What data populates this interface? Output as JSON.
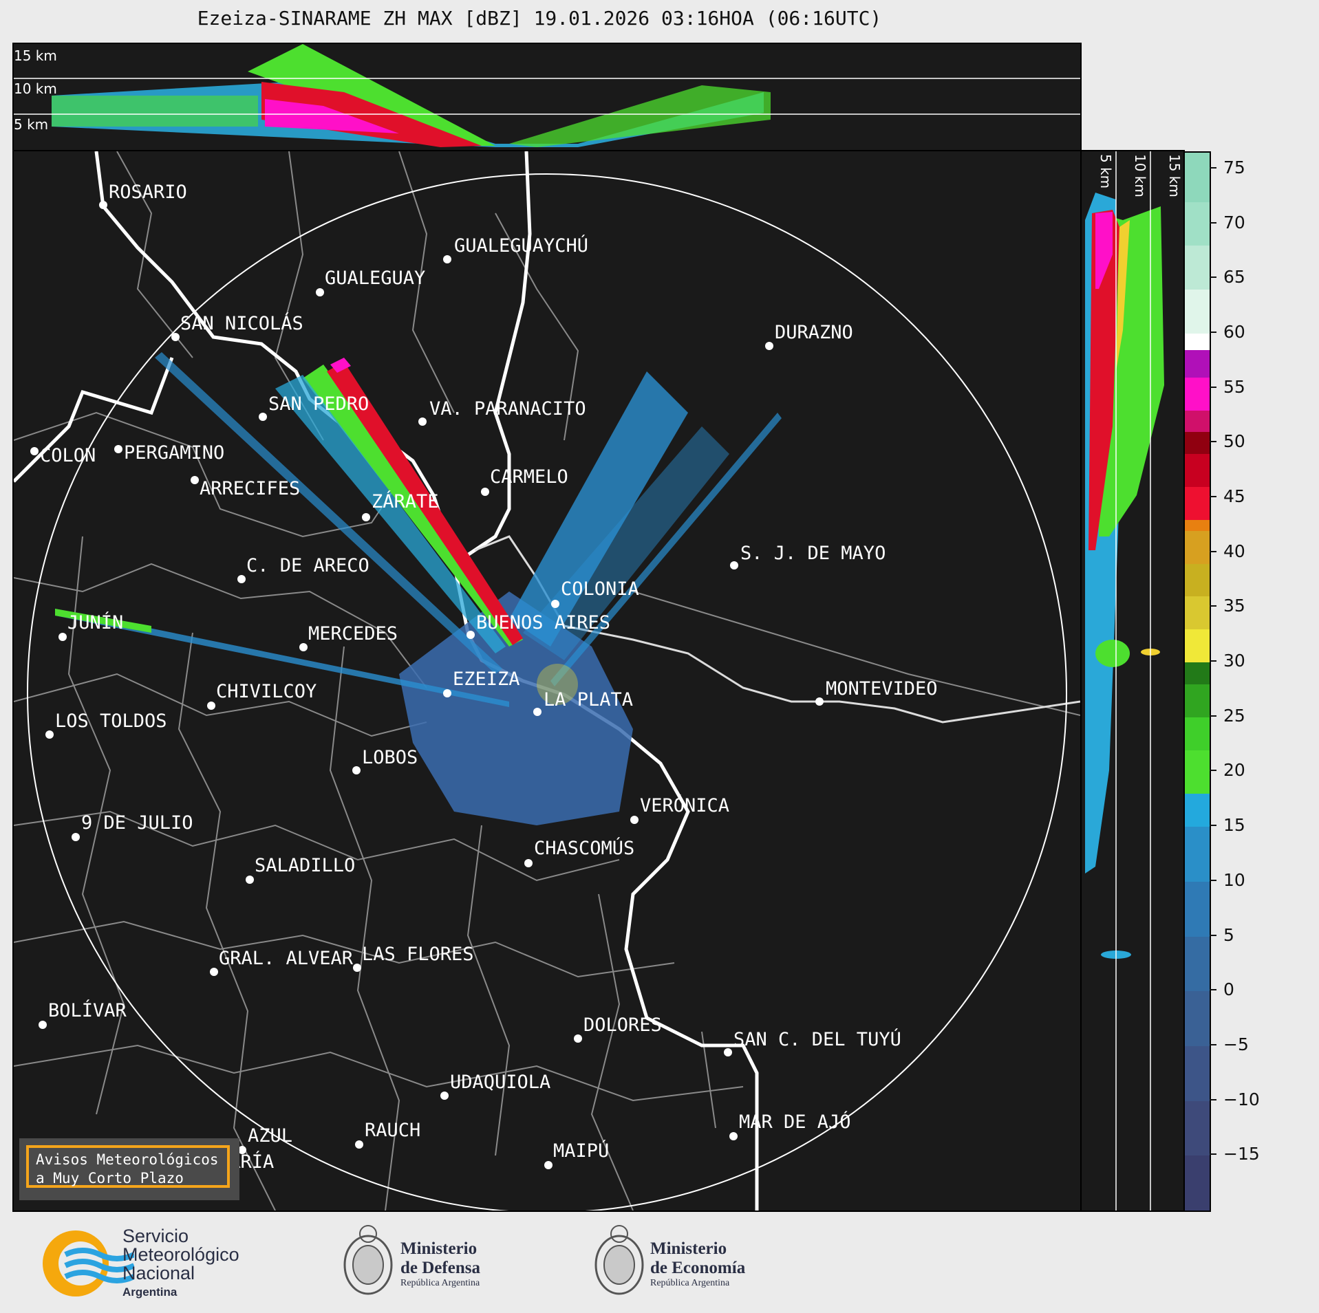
{
  "title": "Ezeiza-SINARAME ZH MAX [dBZ] 19.01.2026 03:16HOA (06:16UTC)",
  "top_panel": {
    "height_labels": [
      "15 km",
      "10 km",
      "5 km"
    ]
  },
  "side_panel": {
    "height_labels": [
      "5 km",
      "10 km",
      "15 km"
    ]
  },
  "cities": [
    {
      "name": "ROSARIO"
    },
    {
      "name": "GUALEGUAYCHÚ"
    },
    {
      "name": "GUALEGUAY"
    },
    {
      "name": "SAN NICOLÁS"
    },
    {
      "name": "DURAZNO"
    },
    {
      "name": "SAN PEDRO"
    },
    {
      "name": "VA. PARANACITO"
    },
    {
      "name": "COLON"
    },
    {
      "name": "PERGAMINO"
    },
    {
      "name": "CARMELO"
    },
    {
      "name": "ARRECIFES"
    },
    {
      "name": "ZÁRATE"
    },
    {
      "name": "S. J. DE MAYO"
    },
    {
      "name": "C. DE ARECO"
    },
    {
      "name": "COLONIA"
    },
    {
      "name": "JUNÍN"
    },
    {
      "name": "MERCEDES"
    },
    {
      "name": "BUENOS AIRES"
    },
    {
      "name": "EZEIZA"
    },
    {
      "name": "MONTEVIDEO"
    },
    {
      "name": "CHIVILCOY"
    },
    {
      "name": "LA PLATA"
    },
    {
      "name": "LOS TOLDOS"
    },
    {
      "name": "LOBOS"
    },
    {
      "name": "VERÓNICA"
    },
    {
      "name": "9 DE JULIO"
    },
    {
      "name": "CHASCOMÚS"
    },
    {
      "name": "SALADILLO"
    },
    {
      "name": "GRAL. ALVEAR"
    },
    {
      "name": "LAS FLORES"
    },
    {
      "name": "BOLÍVAR"
    },
    {
      "name": "DOLORES"
    },
    {
      "name": "SAN C. DEL TUYÚ"
    },
    {
      "name": "UDAQUIOLA"
    },
    {
      "name": "MAR DE AJÓ"
    },
    {
      "name": "AZUL"
    },
    {
      "name": "RAUCH"
    },
    {
      "name": "MAIPÚ"
    },
    {
      "name": "OLAVARRÍA"
    }
  ],
  "colorbar": {
    "unit": "dBZ",
    "ticks": [
      "75",
      "70",
      "65",
      "60",
      "55",
      "50",
      "45",
      "40",
      "35",
      "30",
      "25",
      "20",
      "15",
      "10",
      "5",
      "0",
      "−5",
      "−10",
      "−15"
    ],
    "min": -20,
    "max": 76.5
  },
  "aviso": {
    "line1": "Avisos Meteorológicos",
    "line2": "a Muy Corto Plazo"
  },
  "footer": {
    "smn": [
      "Servicio",
      "Meteorológico",
      "Nacional",
      "Argentina"
    ],
    "defensa": [
      "Ministerio",
      "de Defensa",
      "República Argentina"
    ],
    "economia": [
      "Ministerio",
      "de Economía",
      "República Argentina"
    ]
  },
  "colors": {
    "background": "#1a1a1a",
    "coast": "#ffffff",
    "boundaries": "#8a8a8a",
    "aviso_border": "#f4a41b"
  }
}
